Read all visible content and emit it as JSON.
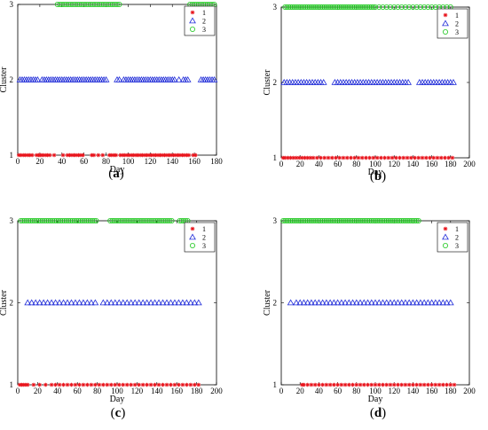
{
  "chart_data": [
    {
      "panel": "a",
      "type": "scatter",
      "xlabel": "Day",
      "ylabel": "Cluster",
      "xlim": [
        0,
        180
      ],
      "ylim": [
        1,
        3
      ],
      "xticks": [
        0,
        20,
        40,
        60,
        80,
        100,
        120,
        140,
        160,
        180
      ],
      "yticks": [
        1,
        2,
        3
      ],
      "legend": "top-right",
      "series": [
        {
          "name": "1",
          "marker": "star",
          "color": "#e8141c",
          "y": 1,
          "x": [
            1,
            3,
            5,
            7,
            9,
            11,
            13,
            17,
            19,
            20,
            21,
            23,
            25,
            27,
            29,
            33,
            41,
            45,
            47,
            49,
            51,
            53,
            55,
            57,
            59,
            67,
            69,
            73,
            77,
            83,
            85,
            87,
            89,
            93,
            95,
            97,
            99,
            101,
            103,
            105,
            107,
            109,
            111,
            113,
            115,
            117,
            119,
            121,
            123,
            125,
            127,
            129,
            131,
            133,
            135,
            137,
            139,
            141,
            143,
            145,
            147,
            149,
            151,
            153,
            155,
            159,
            161
          ]
        },
        {
          "name": "2",
          "marker": "triangle",
          "color": "#1f2bd8",
          "y": 2,
          "x": [
            2,
            4,
            6,
            8,
            10,
            12,
            14,
            16,
            18,
            22,
            24,
            26,
            28,
            30,
            32,
            34,
            36,
            38,
            40,
            42,
            44,
            46,
            48,
            50,
            52,
            54,
            56,
            58,
            60,
            62,
            64,
            66,
            68,
            70,
            72,
            74,
            76,
            78,
            80,
            90,
            92,
            96,
            98,
            100,
            102,
            104,
            106,
            108,
            110,
            112,
            114,
            116,
            118,
            120,
            122,
            124,
            126,
            128,
            130,
            132,
            134,
            136,
            138,
            140,
            142,
            146,
            150,
            152,
            154,
            166,
            168,
            170,
            172,
            174,
            176,
            178
          ]
        },
        {
          "name": "3",
          "marker": "circle",
          "color": "#1ec81e",
          "y": 3,
          "x": [
            36,
            38,
            40,
            42,
            44,
            46,
            48,
            50,
            52,
            54,
            56,
            58,
            60,
            62,
            64,
            66,
            68,
            70,
            72,
            74,
            76,
            78,
            80,
            82,
            84,
            86,
            88,
            90,
            92,
            156,
            158,
            160,
            162,
            164,
            166,
            168,
            170,
            172,
            174,
            176,
            178
          ]
        }
      ]
    },
    {
      "panel": "b",
      "type": "scatter",
      "xlabel": "Day",
      "ylabel": "Cluster",
      "xlim": [
        0,
        200
      ],
      "ylim": [
        1,
        3
      ],
      "xticks": [
        0,
        20,
        40,
        60,
        80,
        100,
        120,
        140,
        160,
        180,
        200
      ],
      "yticks": [
        1,
        2,
        3
      ],
      "legend": "top-right",
      "series": [
        {
          "name": "1",
          "marker": "star",
          "color": "#e8141c",
          "y": 1,
          "x": [
            2,
            4,
            7,
            10,
            13,
            16,
            19,
            22,
            25,
            28,
            31,
            34,
            38,
            42,
            46,
            50,
            54,
            58,
            62,
            66,
            70,
            74,
            78,
            82,
            86,
            90,
            94,
            98,
            102,
            106,
            110,
            114,
            118,
            122,
            126,
            130,
            134,
            138,
            142,
            146,
            150,
            154,
            158,
            162,
            166,
            170,
            174,
            178,
            182
          ]
        },
        {
          "name": "2",
          "marker": "triangle",
          "color": "#1f2bd8",
          "y": 2,
          "x": [
            3,
            6,
            9,
            12,
            15,
            18,
            21,
            24,
            27,
            30,
            33,
            36,
            39,
            42,
            45,
            57,
            60,
            63,
            66,
            69,
            72,
            75,
            78,
            81,
            84,
            87,
            90,
            93,
            96,
            99,
            102,
            105,
            108,
            111,
            114,
            117,
            120,
            123,
            126,
            129,
            132,
            135,
            147,
            150,
            153,
            156,
            159,
            162,
            165,
            168,
            171,
            174,
            177,
            180,
            183
          ]
        },
        {
          "name": "3",
          "marker": "circle",
          "color": "#1ec81e",
          "y": 3,
          "x": [
            4,
            6,
            8,
            10,
            12,
            14,
            16,
            18,
            20,
            22,
            24,
            26,
            28,
            30,
            32,
            34,
            36,
            38,
            40,
            42,
            44,
            46,
            48,
            50,
            52,
            54,
            56,
            58,
            60,
            62,
            64,
            66,
            68,
            70,
            72,
            74,
            76,
            78,
            80,
            82,
            84,
            86,
            88,
            90,
            92,
            94,
            96,
            98,
            100,
            104,
            108,
            112,
            116,
            120,
            124,
            128,
            132,
            136,
            140,
            144,
            148,
            152,
            156,
            160,
            164,
            168,
            172,
            176,
            180
          ]
        }
      ]
    },
    {
      "panel": "c",
      "type": "scatter",
      "xlabel": "Day",
      "ylabel": "Cluster",
      "xlim": [
        0,
        200
      ],
      "ylim": [
        1,
        3
      ],
      "xticks": [
        0,
        20,
        40,
        60,
        80,
        100,
        120,
        140,
        160,
        180,
        200
      ],
      "yticks": [
        1,
        2,
        3
      ],
      "legend": "top-right",
      "series": [
        {
          "name": "1",
          "marker": "star",
          "color": "#e8141c",
          "y": 1,
          "x": [
            2,
            4,
            6,
            8,
            10,
            16,
            22,
            28,
            34,
            38,
            42,
            46,
            50,
            54,
            58,
            62,
            66,
            70,
            74,
            78,
            82,
            86,
            90,
            94,
            98,
            102,
            106,
            110,
            114,
            118,
            122,
            126,
            130,
            134,
            138,
            142,
            146,
            150,
            154,
            158,
            162,
            166,
            170,
            174,
            178,
            182
          ]
        },
        {
          "name": "2",
          "marker": "triangle",
          "color": "#1f2bd8",
          "y": 2,
          "x": [
            10,
            14,
            18,
            22,
            26,
            30,
            34,
            38,
            42,
            46,
            50,
            54,
            58,
            62,
            66,
            70,
            74,
            78,
            86,
            90,
            94,
            98,
            102,
            106,
            110,
            114,
            118,
            122,
            126,
            130,
            134,
            138,
            142,
            146,
            150,
            154,
            158,
            162,
            166,
            170,
            174,
            178,
            182
          ]
        },
        {
          "name": "3",
          "marker": "circle",
          "color": "#1ec81e",
          "y": 3,
          "x": [
            3,
            5,
            7,
            9,
            11,
            13,
            15,
            17,
            19,
            21,
            23,
            25,
            27,
            29,
            31,
            33,
            35,
            37,
            39,
            41,
            43,
            45,
            47,
            49,
            51,
            53,
            55,
            57,
            59,
            61,
            63,
            65,
            67,
            69,
            71,
            73,
            75,
            77,
            79,
            93,
            95,
            97,
            99,
            101,
            103,
            105,
            107,
            109,
            111,
            113,
            115,
            117,
            119,
            121,
            123,
            125,
            127,
            129,
            131,
            133,
            135,
            137,
            139,
            141,
            143,
            145,
            147,
            149,
            151,
            153,
            155,
            163,
            165,
            167,
            169,
            171
          ]
        }
      ]
    },
    {
      "panel": "d",
      "type": "scatter",
      "xlabel": "Day",
      "ylabel": "Cluster",
      "xlim": [
        0,
        200
      ],
      "ylim": [
        1,
        3
      ],
      "xticks": [
        0,
        20,
        40,
        60,
        80,
        100,
        120,
        140,
        160,
        180,
        200
      ],
      "yticks": [
        1,
        2,
        3
      ],
      "legend": "top-right",
      "series": [
        {
          "name": "1",
          "marker": "star",
          "color": "#e8141c",
          "y": 1,
          "x": [
            22,
            24,
            28,
            32,
            36,
            40,
            44,
            48,
            52,
            56,
            60,
            64,
            68,
            72,
            76,
            80,
            84,
            88,
            92,
            96,
            100,
            104,
            108,
            112,
            116,
            120,
            124,
            128,
            132,
            136,
            140,
            144,
            148,
            152,
            156,
            160,
            164,
            168,
            172,
            176,
            180,
            184
          ]
        },
        {
          "name": "2",
          "marker": "triangle",
          "color": "#1f2bd8",
          "y": 2,
          "x": [
            10,
            16,
            20,
            24,
            28,
            32,
            36,
            40,
            44,
            48,
            52,
            56,
            60,
            64,
            68,
            72,
            76,
            80,
            84,
            88,
            92,
            96,
            100,
            104,
            108,
            112,
            116,
            120,
            124,
            128,
            132,
            136,
            140,
            144,
            148,
            152,
            156,
            160,
            164,
            168,
            172,
            176,
            180
          ]
        },
        {
          "name": "3",
          "marker": "circle",
          "color": "#1ec81e",
          "y": 3,
          "x": [
            2,
            4,
            6,
            8,
            10,
            12,
            14,
            16,
            18,
            20,
            22,
            24,
            26,
            28,
            30,
            32,
            34,
            36,
            38,
            40,
            42,
            44,
            46,
            48,
            50,
            52,
            54,
            56,
            58,
            60,
            62,
            64,
            66,
            68,
            70,
            72,
            74,
            76,
            78,
            80,
            82,
            84,
            86,
            88,
            90,
            92,
            94,
            96,
            98,
            100,
            102,
            104,
            106,
            108,
            110,
            112,
            114,
            116,
            118,
            120,
            122,
            124,
            126,
            128,
            130,
            132,
            134,
            136,
            138,
            140,
            142,
            144,
            146
          ]
        }
      ]
    }
  ],
  "panel_labels": [
    "(a)",
    "(b)",
    "(c)",
    "(d)"
  ]
}
